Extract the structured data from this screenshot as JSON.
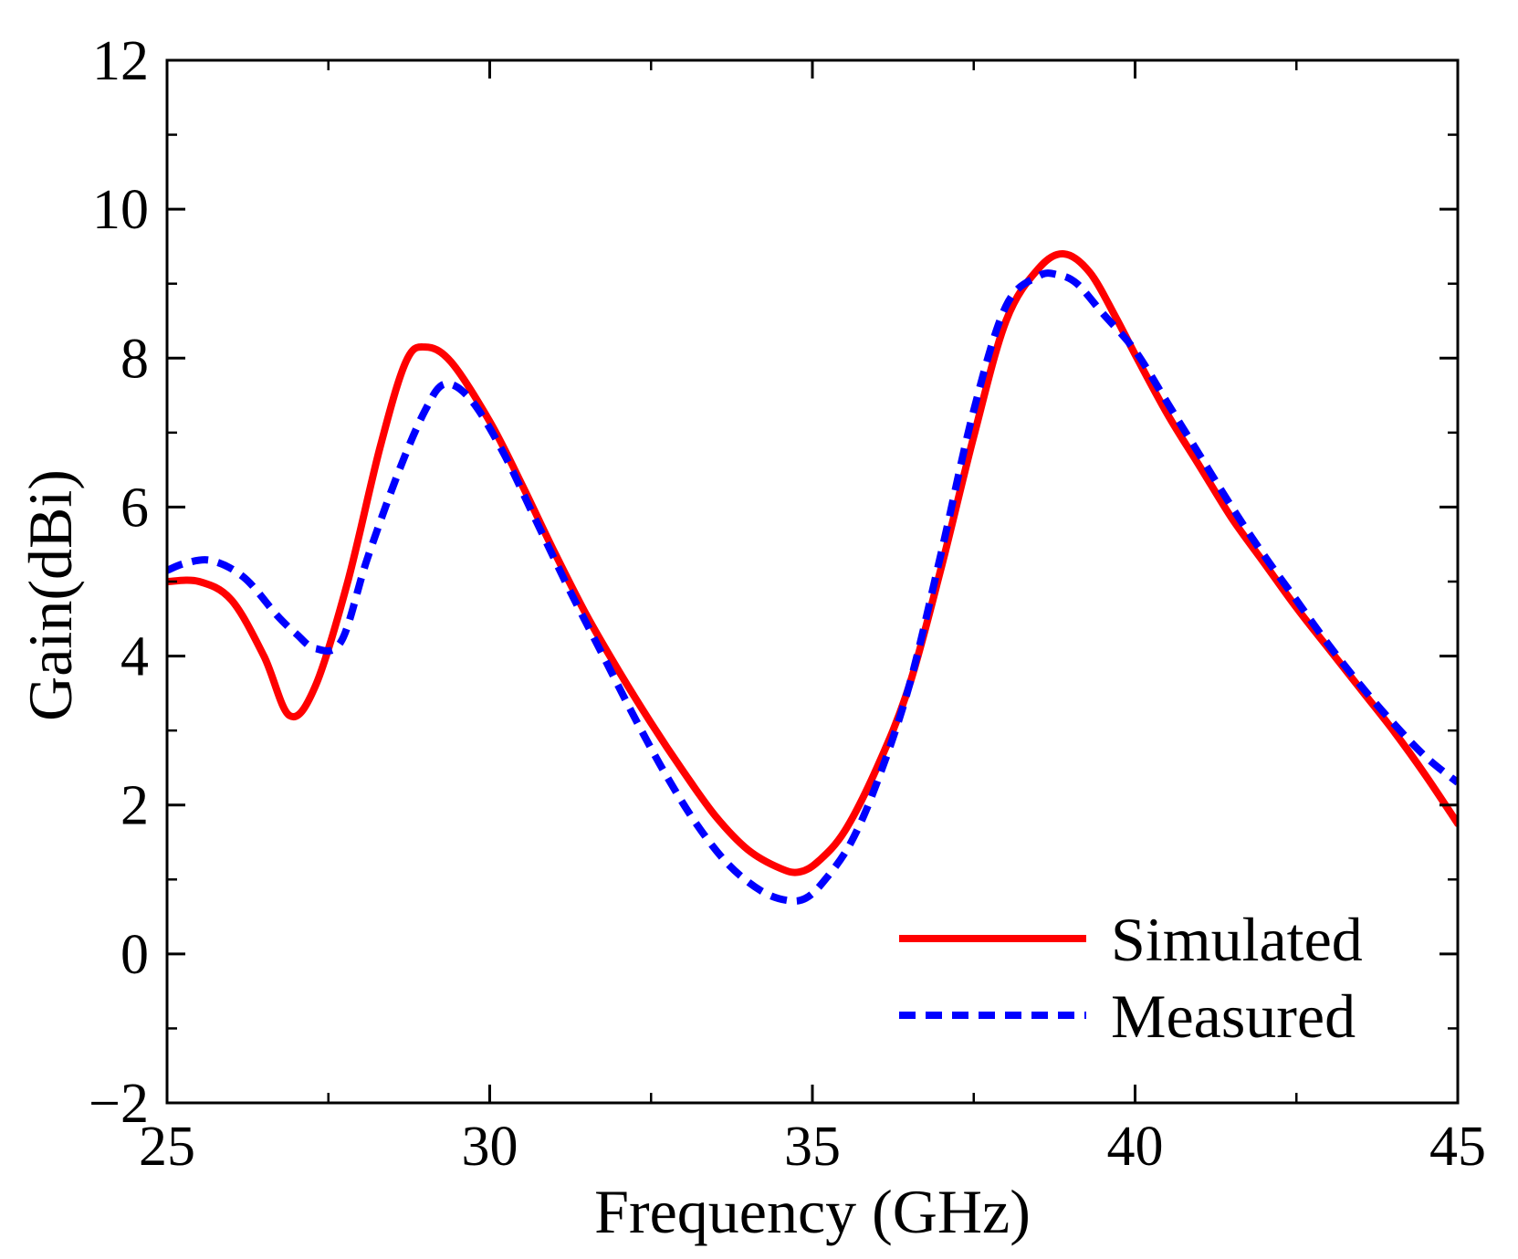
{
  "chart_data": {
    "type": "line",
    "title": "",
    "xlabel": "Frequency (GHz)",
    "ylabel": "Gain(dBi)",
    "xlim": [
      25,
      45
    ],
    "ylim": [
      -2,
      12
    ],
    "xticks": [
      25,
      30,
      35,
      40,
      45
    ],
    "xtick_labels": [
      "25",
      "30",
      "35",
      "40",
      "45"
    ],
    "yticks": [
      -2,
      0,
      2,
      4,
      6,
      8,
      10,
      12
    ],
    "ytick_labels": [
      "−2",
      "0",
      "2",
      "4",
      "6",
      "8",
      "10",
      "12"
    ],
    "grid": false,
    "legend_position": "bottom-right",
    "series": [
      {
        "name": "Simulated",
        "color": "#ff0000",
        "style": "solid",
        "x": [
          25.0,
          25.5,
          26.0,
          26.5,
          26.9,
          27.3,
          27.8,
          28.3,
          28.7,
          29.0,
          29.4,
          30.0,
          30.5,
          31.0,
          31.5,
          32.0,
          32.5,
          33.0,
          33.5,
          34.0,
          34.5,
          34.8,
          35.1,
          35.5,
          36.0,
          36.5,
          37.0,
          37.5,
          38.0,
          38.5,
          38.9,
          39.3,
          39.7,
          40.0,
          40.5,
          41.0,
          41.5,
          42.0,
          42.5,
          43.0,
          43.5,
          44.0,
          44.5,
          45.0
        ],
        "y": [
          5.0,
          5.0,
          4.75,
          4.0,
          3.2,
          3.6,
          5.0,
          6.8,
          7.95,
          8.15,
          7.95,
          7.15,
          6.3,
          5.4,
          4.55,
          3.8,
          3.1,
          2.45,
          1.85,
          1.4,
          1.15,
          1.1,
          1.25,
          1.65,
          2.5,
          3.6,
          5.2,
          6.95,
          8.5,
          9.2,
          9.4,
          9.15,
          8.55,
          8.05,
          7.25,
          6.55,
          5.85,
          5.25,
          4.65,
          4.1,
          3.55,
          3.0,
          2.4,
          1.75
        ]
      },
      {
        "name": "Measured",
        "color": "#0000ff",
        "style": "dashed",
        "x": [
          25.0,
          25.3,
          25.7,
          26.2,
          26.7,
          27.0,
          27.3,
          27.7,
          28.1,
          28.6,
          29.0,
          29.3,
          29.7,
          30.2,
          30.7,
          31.2,
          31.7,
          32.2,
          32.7,
          33.2,
          33.7,
          34.2,
          34.6,
          34.9,
          35.2,
          35.6,
          36.0,
          36.5,
          37.0,
          37.5,
          38.0,
          38.5,
          38.8,
          39.1,
          39.5,
          40.0,
          40.5,
          41.0,
          41.5,
          42.0,
          42.5,
          43.0,
          43.5,
          44.0,
          44.5,
          45.0
        ],
        "y": [
          5.15,
          5.25,
          5.28,
          5.05,
          4.55,
          4.3,
          4.1,
          4.2,
          5.3,
          6.5,
          7.3,
          7.65,
          7.45,
          6.75,
          5.85,
          4.95,
          4.1,
          3.25,
          2.45,
          1.75,
          1.2,
          0.85,
          0.72,
          0.75,
          1.0,
          1.5,
          2.3,
          3.6,
          5.4,
          7.3,
          8.7,
          9.1,
          9.12,
          9.0,
          8.6,
          8.1,
          7.4,
          6.7,
          6.0,
          5.35,
          4.75,
          4.15,
          3.6,
          3.1,
          2.65,
          2.3
        ]
      }
    ]
  }
}
